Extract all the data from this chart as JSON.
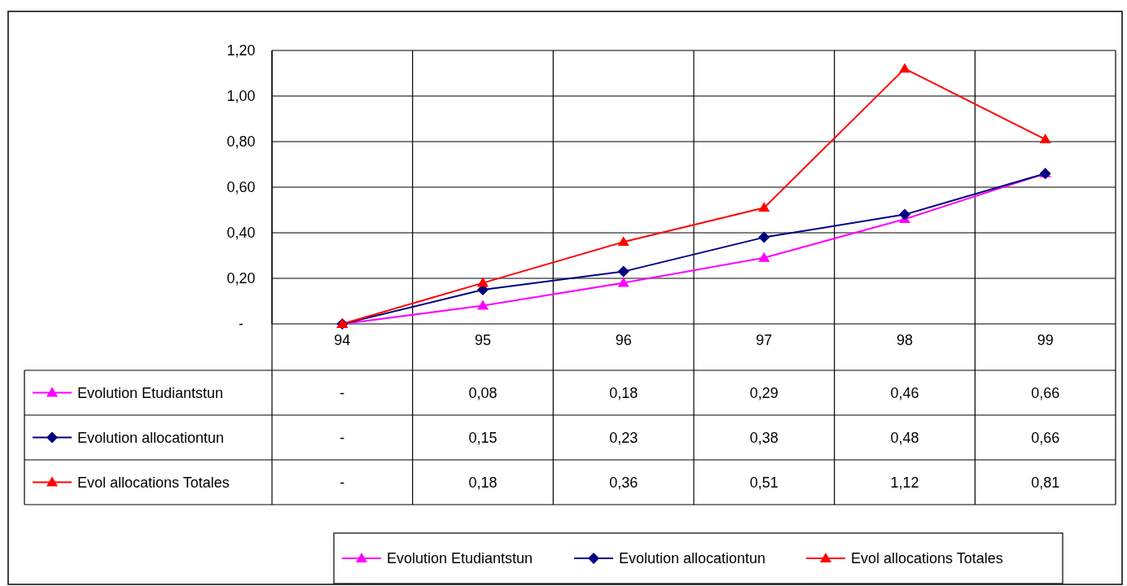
{
  "chart_data": {
    "type": "line",
    "categories": [
      "94",
      "95",
      "96",
      "97",
      "98",
      "99"
    ],
    "series": [
      {
        "name": "Evolution Etudiantstun",
        "color": "#ff00ff",
        "marker": "triangle",
        "values": [
          0,
          0.08,
          0.18,
          0.29,
          0.46,
          0.66
        ],
        "value_labels": [
          "-",
          "0,08",
          "0,18",
          "0,29",
          "0,46",
          "0,66"
        ]
      },
      {
        "name": "Evolution allocationtun",
        "color": "#000080",
        "marker": "diamond",
        "values": [
          0,
          0.15,
          0.23,
          0.38,
          0.48,
          0.66
        ],
        "value_labels": [
          "-",
          "0,15",
          "0,23",
          "0,38",
          "0,48",
          "0,66"
        ]
      },
      {
        "name": "Evol allocations Totales",
        "color": "#ff0000",
        "marker": "triangle",
        "values": [
          0,
          0.18,
          0.36,
          0.51,
          1.12,
          0.81
        ],
        "value_labels": [
          "-",
          "0,18",
          "0,36",
          "0,51",
          "1,12",
          "0,81"
        ]
      }
    ],
    "ylim": [
      0,
      1.2
    ],
    "yticks": [
      {
        "value": 0,
        "label": "-"
      },
      {
        "value": 0.2,
        "label": "0,20"
      },
      {
        "value": 0.4,
        "label": "0,40"
      },
      {
        "value": 0.6,
        "label": "0,60"
      },
      {
        "value": 0.8,
        "label": "0,80"
      },
      {
        "value": 1,
        "label": "1,00"
      },
      {
        "value": 1.2,
        "label": "1,20"
      }
    ],
    "grid": true,
    "legend": "bottom"
  }
}
